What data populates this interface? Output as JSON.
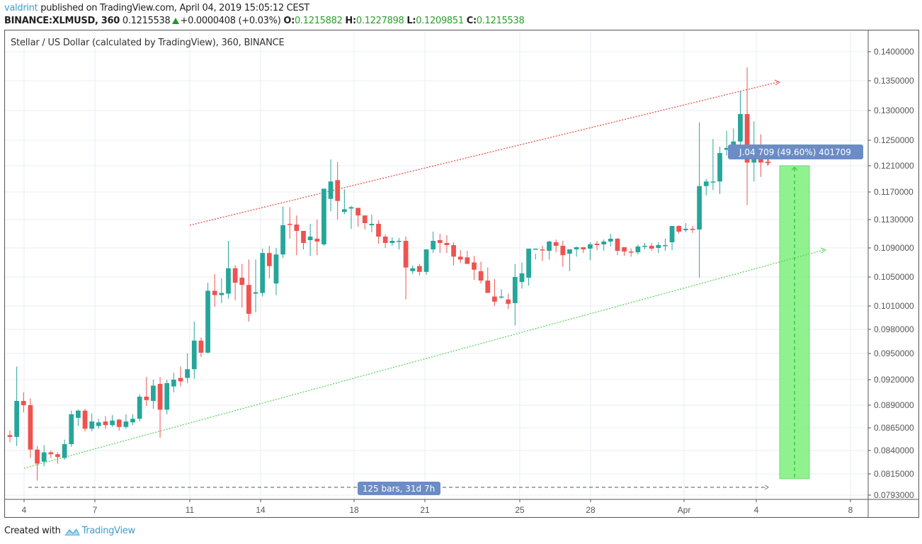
{
  "header": {
    "author": "valdrint",
    "published_text": "published on TradingView.com, April 04, 2019 15:05:12 CEST",
    "symbol": "BINANCE:XLMUSD, 360",
    "last_price": "0.1215538",
    "change": "+0.0000408 (+0.03%)",
    "open_label": "O:",
    "open": "0.1215882",
    "high_label": "H:",
    "high": "0.1227898",
    "low_label": "L:",
    "low": "0.1209851",
    "close_label": "C:",
    "close": "0.1215538"
  },
  "pane": {
    "title": "Stellar / US Dollar (calculated by TradingView), 360, BINANCE"
  },
  "footer": {
    "created_with": "Created with",
    "brand": "TradingView"
  },
  "colors": {
    "up": "#26a69a",
    "down": "#ef5350",
    "upper_trendline": "#e5534b",
    "lower_trendline": "#5ed35e",
    "projection_fill": "#7cf07c",
    "label_bg": "#6b8cc4",
    "grid": "#e8eef3"
  },
  "annotations": {
    "price_range_label": "0.041709 (49.60%) 401709",
    "price_range_visible": "J.04 709 (49.60%) 401709",
    "bars_range_label": "125 bars, 31d 7h"
  },
  "chart_data": {
    "type": "candlestick",
    "title": "Stellar / US Dollar (calculated by TradingView), 360, BINANCE",
    "symbol": "BINANCE:XLMUSD",
    "interval": "360",
    "xlabel": "",
    "ylabel": "",
    "y_ticks": [
      "0.1400000",
      "0.1350000",
      "0.1300000",
      "0.1250000",
      "0.1210000",
      "0.1170000",
      "0.1130000",
      "0.1090000",
      "0.1050000",
      "0.1010000",
      "0.0980000",
      "0.0950000",
      "0.0920000",
      "0.0890000",
      "0.0865000",
      "0.0840000",
      "0.0815000",
      "0.0793000"
    ],
    "x_ticks": [
      "4",
      "7",
      "11",
      "14",
      "18",
      "21",
      "25",
      "28",
      "Apr",
      "4",
      "8"
    ],
    "ylim": [
      0.0793,
      0.14
    ],
    "grid": true,
    "candles_ohlc": [
      [
        0.0857,
        0.0862,
        0.0849,
        0.0855
      ],
      [
        0.0855,
        0.0935,
        0.0845,
        0.0895
      ],
      [
        0.0895,
        0.0905,
        0.0882,
        0.089
      ],
      [
        0.089,
        0.0898,
        0.0832,
        0.0841
      ],
      [
        0.0841,
        0.0845,
        0.0808,
        0.0826
      ],
      [
        0.0828,
        0.0846,
        0.0823,
        0.0838
      ],
      [
        0.0838,
        0.084,
        0.0832,
        0.0836
      ],
      [
        0.0836,
        0.0838,
        0.0826,
        0.0833
      ],
      [
        0.0832,
        0.0852,
        0.083,
        0.0847
      ],
      [
        0.0847,
        0.0884,
        0.0844,
        0.088
      ],
      [
        0.0876,
        0.0885,
        0.0867,
        0.0884
      ],
      [
        0.0884,
        0.0886,
        0.0861,
        0.0864
      ],
      [
        0.0864,
        0.0881,
        0.0861,
        0.0872
      ],
      [
        0.0867,
        0.0875,
        0.0864,
        0.0871
      ],
      [
        0.0872,
        0.0878,
        0.0864,
        0.0868
      ],
      [
        0.0868,
        0.0879,
        0.0866,
        0.0873
      ],
      [
        0.0874,
        0.0875,
        0.0862,
        0.0866
      ],
      [
        0.0866,
        0.088,
        0.0864,
        0.0872
      ],
      [
        0.0871,
        0.088,
        0.0868,
        0.0875
      ],
      [
        0.0875,
        0.0903,
        0.0872,
        0.09
      ],
      [
        0.09,
        0.0923,
        0.0889,
        0.0896
      ],
      [
        0.0895,
        0.092,
        0.0886,
        0.0913
      ],
      [
        0.0915,
        0.0923,
        0.0854,
        0.0885
      ],
      [
        0.0885,
        0.092,
        0.088,
        0.0916
      ],
      [
        0.0912,
        0.0928,
        0.0905,
        0.092
      ],
      [
        0.0922,
        0.0935,
        0.0912,
        0.0918
      ],
      [
        0.0922,
        0.095,
        0.0916,
        0.0932
      ],
      [
        0.0932,
        0.099,
        0.0921,
        0.0966
      ],
      [
        0.0966,
        0.097,
        0.0946,
        0.0951
      ],
      [
        0.0951,
        0.1042,
        0.095,
        0.1031
      ],
      [
        0.1031,
        0.1054,
        0.1009,
        0.1025
      ],
      [
        0.1025,
        0.1048,
        0.1014,
        0.1028
      ],
      [
        0.1027,
        0.11,
        0.102,
        0.1062
      ],
      [
        0.1062,
        0.1066,
        0.1018,
        0.1042
      ],
      [
        0.1049,
        0.1068,
        0.1008,
        0.1039
      ],
      [
        0.1039,
        0.1074,
        0.099,
        0.1
      ],
      [
        0.1027,
        0.1074,
        0.1002,
        0.1029
      ],
      [
        0.1028,
        0.1089,
        0.1023,
        0.1083
      ],
      [
        0.1083,
        0.1093,
        0.1048,
        0.1065
      ],
      [
        0.1041,
        0.109,
        0.1025,
        0.1081
      ],
      [
        0.1081,
        0.1149,
        0.1076,
        0.1122
      ],
      [
        0.1124,
        0.1148,
        0.1103,
        0.1123
      ],
      [
        0.1123,
        0.1136,
        0.108,
        0.1114
      ],
      [
        0.1114,
        0.1111,
        0.1088,
        0.1097
      ],
      [
        0.1101,
        0.1124,
        0.1079,
        0.1106
      ],
      [
        0.1103,
        0.113,
        0.108,
        0.1099
      ],
      [
        0.1095,
        0.116,
        0.1093,
        0.1175
      ],
      [
        0.116,
        0.122,
        0.1142,
        0.1186
      ],
      [
        0.1188,
        0.1216,
        0.113,
        0.1157
      ],
      [
        0.1141,
        0.1174,
        0.1138,
        0.1145
      ],
      [
        0.1146,
        0.115,
        0.1117,
        0.1148
      ],
      [
        0.1147,
        0.1145,
        0.112,
        0.1136
      ],
      [
        0.1136,
        0.1131,
        0.1116,
        0.1125
      ],
      [
        0.1122,
        0.1137,
        0.1112,
        0.1124
      ],
      [
        0.1124,
        0.1129,
        0.1096,
        0.1106
      ],
      [
        0.1106,
        0.1109,
        0.109,
        0.1097
      ],
      [
        0.1097,
        0.1105,
        0.1093,
        0.11
      ],
      [
        0.11,
        0.1104,
        0.1088,
        0.11
      ],
      [
        0.11,
        0.1106,
        0.1019,
        0.1063
      ],
      [
        0.1058,
        0.1066,
        0.1054,
        0.1062
      ],
      [
        0.1065,
        0.1068,
        0.1052,
        0.1057
      ],
      [
        0.1057,
        0.1084,
        0.1053,
        0.1088
      ],
      [
        0.1088,
        0.1113,
        0.1083,
        0.11
      ],
      [
        0.1101,
        0.111,
        0.1083,
        0.1097
      ],
      [
        0.1097,
        0.1108,
        0.1083,
        0.1094
      ],
      [
        0.1094,
        0.1098,
        0.1066,
        0.1078
      ],
      [
        0.1078,
        0.1087,
        0.1069,
        0.1074
      ],
      [
        0.1077,
        0.1086,
        0.1068,
        0.1068
      ],
      [
        0.107,
        0.1079,
        0.1046,
        0.106
      ],
      [
        0.1058,
        0.1071,
        0.1041,
        0.1045
      ],
      [
        0.1045,
        0.1063,
        0.1033,
        0.1028
      ],
      [
        0.1023,
        0.1047,
        0.101,
        0.1016
      ],
      [
        0.1022,
        0.1033,
        0.102,
        0.1023
      ],
      [
        0.1019,
        0.1027,
        0.1006,
        0.1013
      ],
      [
        0.1014,
        0.1068,
        0.0985,
        0.105
      ],
      [
        0.1043,
        0.107,
        0.1034,
        0.1055
      ],
      [
        0.1049,
        0.108,
        0.1038,
        0.1089
      ],
      [
        0.1089,
        0.1082,
        0.1074,
        0.1089
      ],
      [
        0.1088,
        0.1093,
        0.1072,
        0.1087
      ],
      [
        0.1086,
        0.11,
        0.1074,
        0.1099
      ],
      [
        0.1098,
        0.1102,
        0.1084,
        0.1093
      ],
      [
        0.1093,
        0.11,
        0.1064,
        0.108
      ],
      [
        0.1082,
        0.1087,
        0.1058,
        0.1088
      ],
      [
        0.1088,
        0.1092,
        0.1078,
        0.1091
      ],
      [
        0.1091,
        0.1089,
        0.1083,
        0.1088
      ],
      [
        0.1089,
        0.1098,
        0.1073,
        0.1095
      ],
      [
        0.1096,
        0.11,
        0.1087,
        0.1094
      ],
      [
        0.1095,
        0.1102,
        0.1086,
        0.1099
      ],
      [
        0.1099,
        0.111,
        0.1092,
        0.1103
      ],
      [
        0.1103,
        0.1104,
        0.108,
        0.1086
      ],
      [
        0.1091,
        0.1089,
        0.1079,
        0.1085
      ],
      [
        0.1085,
        0.1089,
        0.1078,
        0.1084
      ],
      [
        0.1084,
        0.1095,
        0.1081,
        0.1092
      ],
      [
        0.1092,
        0.1097,
        0.1088,
        0.1093
      ],
      [
        0.1093,
        0.1097,
        0.1086,
        0.1089
      ],
      [
        0.109,
        0.1098,
        0.1083,
        0.1094
      ],
      [
        0.1094,
        0.1103,
        0.1086,
        0.1094
      ],
      [
        0.1098,
        0.1121,
        0.1087,
        0.1121
      ],
      [
        0.1121,
        0.1122,
        0.111,
        0.1113
      ],
      [
        0.1115,
        0.1125,
        0.1112,
        0.1117
      ],
      [
        0.1117,
        0.1121,
        0.1111,
        0.1116
      ],
      [
        0.1116,
        0.128,
        0.1049,
        0.1179
      ],
      [
        0.1179,
        0.119,
        0.1165,
        0.1186
      ],
      [
        0.1186,
        0.1252,
        0.1173,
        0.1186
      ],
      [
        0.1186,
        0.124,
        0.1167,
        0.123
      ],
      [
        0.1235,
        0.1266,
        0.1226,
        0.1238
      ],
      [
        0.1238,
        0.127,
        0.1221,
        0.1248
      ],
      [
        0.1248,
        0.1332,
        0.1241,
        0.1294
      ],
      [
        0.1294,
        0.1373,
        0.1151,
        0.1215
      ],
      [
        0.1215,
        0.1282,
        0.1186,
        0.1242
      ],
      [
        0.123,
        0.126,
        0.1193,
        0.1215
      ],
      [
        0.1215882,
        0.1227898,
        0.1209851,
        0.1215538
      ]
    ],
    "drawings": {
      "upper_trendline": {
        "color": "#e5534b",
        "style": "dotted",
        "from": [
          "Mar 11",
          0.1138
        ],
        "to": [
          "Apr 5",
          0.1346
        ]
      },
      "lower_trendline": {
        "color": "#5ed35e",
        "style": "dotted",
        "from": [
          "Mar 4",
          0.0827
        ],
        "to": [
          "Apr 6",
          0.1093
        ]
      },
      "price_range": {
        "label": "0.041709 (49.60%) 401709",
        "top": 0.121,
        "bottom": 0.081,
        "fill": "#7cf07c"
      },
      "date_range": {
        "label": "125 bars, 31d 7h",
        "y": 0.08
      }
    }
  }
}
